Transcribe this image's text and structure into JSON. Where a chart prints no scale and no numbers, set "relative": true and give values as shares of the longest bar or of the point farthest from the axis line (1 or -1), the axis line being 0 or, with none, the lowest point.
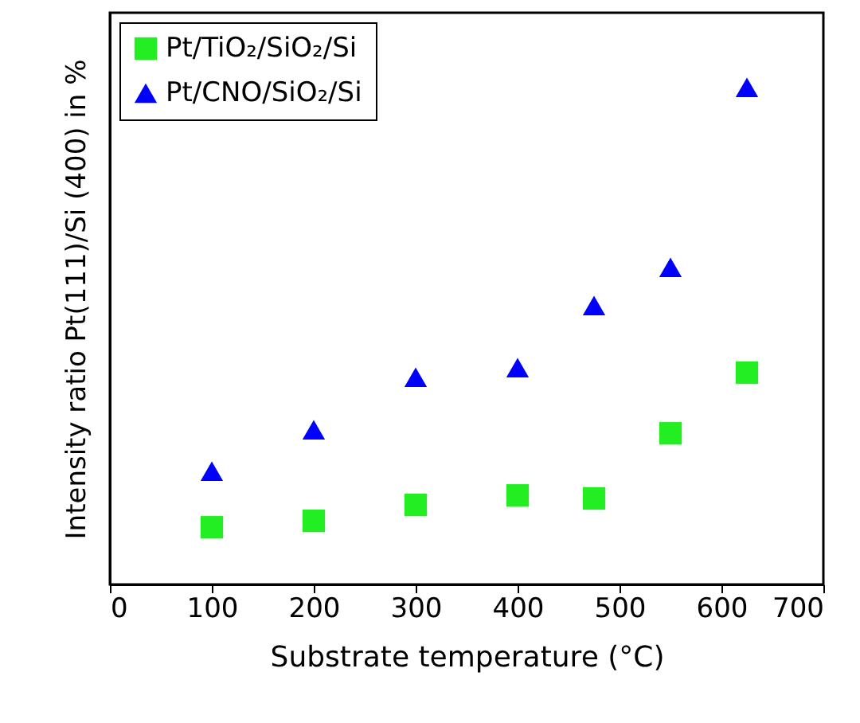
{
  "chart_data": {
    "type": "scatter",
    "xlabel": "Substrate temperature (°C)",
    "ylabel": "Intensity ratio Pt(111)/Si (400) in %",
    "relative": true,
    "xlim": [
      0,
      700
    ],
    "xticks": [
      0,
      100,
      200,
      300,
      400,
      500,
      600,
      700
    ],
    "grid": false,
    "legend": "top left",
    "x": [
      100,
      200,
      300,
      400,
      475,
      550,
      625
    ],
    "series": [
      {
        "name": "Pt/TiO₂/SiO₂/Si",
        "color": "#22ee22",
        "marker": "square",
        "values": [
          0.115,
          0.128,
          0.16,
          0.179,
          0.173,
          0.304,
          0.426
        ]
      },
      {
        "name": "Pt/CNO/SiO₂/Si",
        "color": "#0000ff",
        "marker": "triangle",
        "values": [
          0.228,
          0.311,
          0.417,
          0.436,
          0.561,
          0.638,
          1
        ]
      }
    ]
  }
}
